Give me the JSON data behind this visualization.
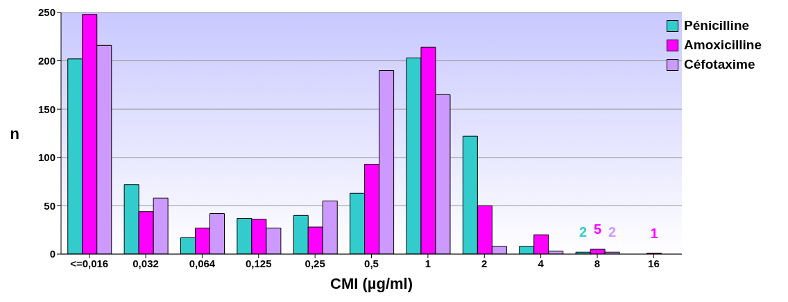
{
  "chart_data": {
    "type": "bar",
    "xlabel": "CMI (µg/ml)",
    "ylabel": "n",
    "categories": [
      "<=0,016",
      "0,032",
      "0,064",
      "0,125",
      "0,25",
      "0,5",
      "1",
      "2",
      "4",
      "8",
      "16"
    ],
    "series": [
      {
        "name": "Pénicilline",
        "color": "#33cccc",
        "values": [
          202,
          72,
          17,
          37,
          40,
          63,
          203,
          122,
          8,
          2,
          0
        ],
        "value_labels": [
          null,
          null,
          null,
          null,
          null,
          null,
          null,
          null,
          null,
          "2",
          null
        ]
      },
      {
        "name": "Amoxicilline",
        "color": "#ff00ff",
        "values": [
          248,
          44,
          27,
          36,
          28,
          93,
          214,
          50,
          20,
          5,
          1
        ],
        "value_labels": [
          null,
          null,
          null,
          null,
          null,
          null,
          null,
          null,
          null,
          "5",
          "1"
        ]
      },
      {
        "name": "Céfotaxime",
        "color": "#cc99ff",
        "values": [
          216,
          58,
          42,
          27,
          55,
          190,
          165,
          8,
          3,
          2,
          0
        ],
        "value_labels": [
          null,
          null,
          null,
          null,
          null,
          null,
          null,
          null,
          null,
          "2",
          null
        ]
      }
    ],
    "ylim": [
      0,
      250
    ],
    "yticks": [
      0,
      50,
      100,
      150,
      200,
      250
    ],
    "grid": "y",
    "legend": "top right"
  }
}
